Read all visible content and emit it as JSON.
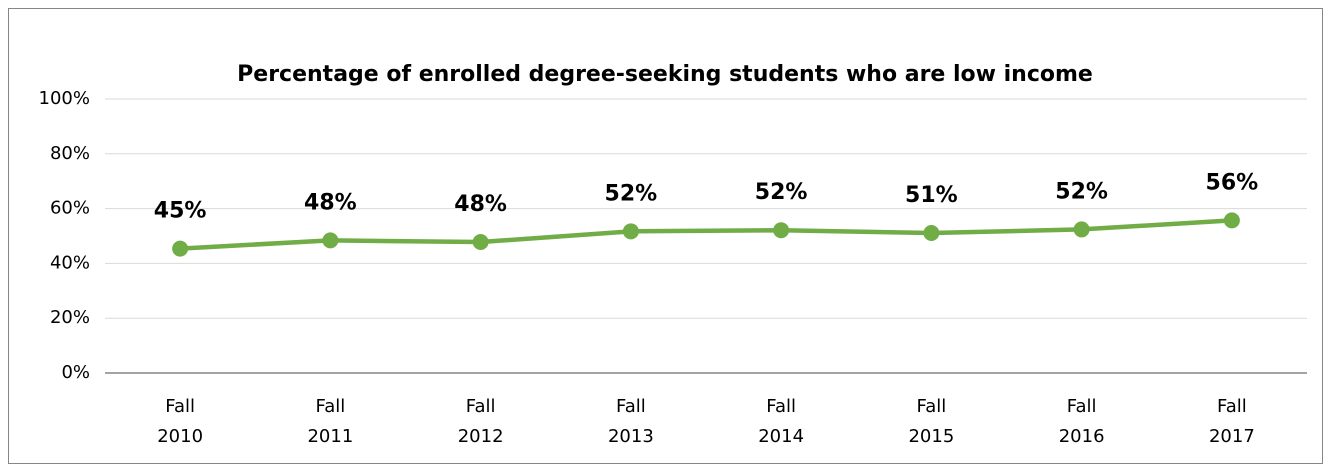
{
  "chart_data": {
    "type": "line",
    "title": "Percentage of enrolled degree-seeking students who are low income",
    "categories": [
      "Fall 2010",
      "Fall 2011",
      "Fall 2012",
      "Fall 2013",
      "Fall 2014",
      "Fall 2015",
      "Fall 2016",
      "Fall 2017"
    ],
    "series": [
      {
        "color": "#70ad47",
        "values": [
          45.4,
          48.4,
          47.8,
          51.7,
          52.1,
          51.1,
          52.4,
          55.7
        ],
        "value_labels": [
          "45%",
          "48%",
          "48%",
          "52%",
          "52%",
          "51%",
          "52%",
          "56%"
        ]
      }
    ],
    "ylim": [
      0,
      100
    ],
    "yticks": [
      {
        "value": 0,
        "label": "0%"
      },
      {
        "value": 20,
        "label": "20%"
      },
      {
        "value": 40,
        "label": "40%"
      },
      {
        "value": 60,
        "label": "60%"
      },
      {
        "value": 80,
        "label": "80%"
      },
      {
        "value": 100,
        "label": "100%"
      }
    ],
    "grid": true
  }
}
